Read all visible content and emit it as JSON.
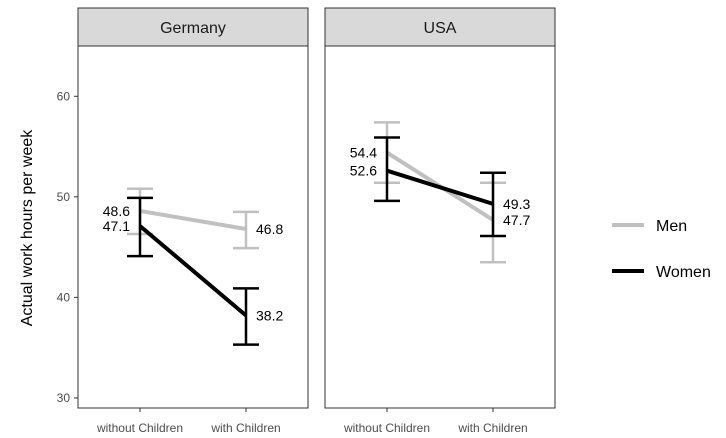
{
  "chart_data": {
    "type": "line",
    "ylabel": "Actual work hours per week",
    "xlabel": "",
    "ylim": [
      29,
      65
    ],
    "yticks": [
      30,
      40,
      50,
      60
    ],
    "categories": [
      "without Children",
      "with Children"
    ],
    "grid": false,
    "legend_position": "right",
    "panels": [
      {
        "title": "Germany",
        "series": [
          {
            "name": "Men",
            "values": [
              48.6,
              46.8
            ],
            "labels": [
              "48.6",
              "46.8"
            ],
            "error_low": [
              46.3,
              44.9
            ],
            "error_high": [
              50.8,
              48.5
            ]
          },
          {
            "name": "Women",
            "values": [
              47.1,
              38.2
            ],
            "labels": [
              "47.1",
              "38.2"
            ],
            "error_low": [
              44.1,
              35.3
            ],
            "error_high": [
              49.9,
              40.9
            ]
          }
        ]
      },
      {
        "title": "USA",
        "series": [
          {
            "name": "Men",
            "values": [
              54.4,
              47.7
            ],
            "labels": [
              "54.4",
              "47.7"
            ],
            "error_low": [
              51.4,
              43.5
            ],
            "error_high": [
              57.4,
              51.4
            ]
          },
          {
            "name": "Women",
            "values": [
              52.6,
              49.3
            ],
            "labels": [
              "52.6",
              "49.3"
            ],
            "error_low": [
              49.6,
              46.1
            ],
            "error_high": [
              55.9,
              52.4
            ]
          }
        ]
      }
    ],
    "legend": [
      {
        "name": "Men",
        "color": "#c0c0c0"
      },
      {
        "name": "Women",
        "color": "#000000"
      }
    ]
  },
  "colors": {
    "men": "#c0c0c0",
    "women": "#000000",
    "strip": "#d9d9d9",
    "frame": "#333333"
  }
}
